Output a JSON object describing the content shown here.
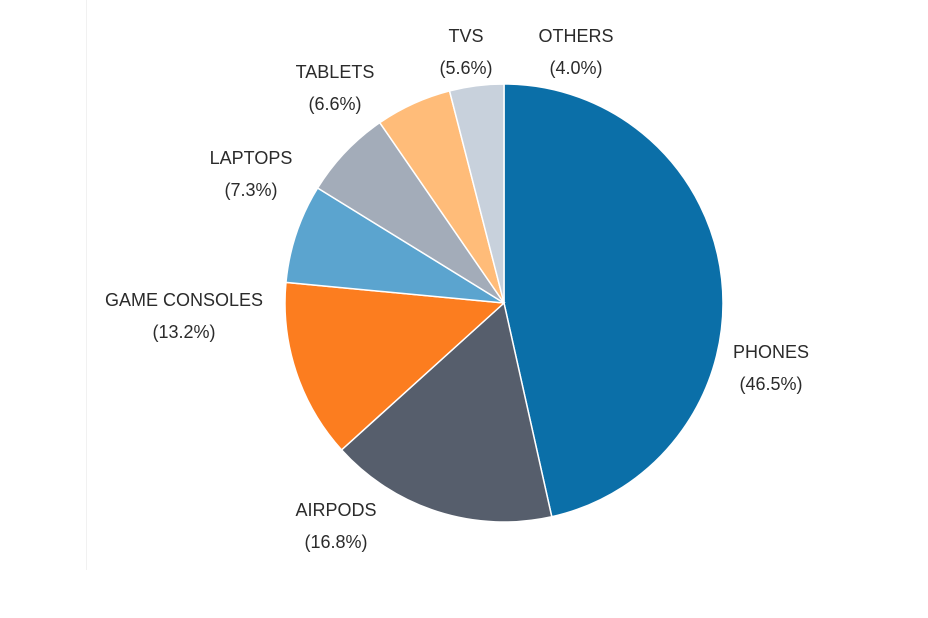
{
  "chart_data": {
    "type": "pie",
    "title": "",
    "slices": [
      {
        "label": "PHONES",
        "value": 46.5,
        "value_label": "(46.5%)",
        "color": "#0b6fa8"
      },
      {
        "label": "AIRPODS",
        "value": 16.8,
        "value_label": "(16.8%)",
        "color": "#565e6c"
      },
      {
        "label": "GAME CONSOLES",
        "value": 13.2,
        "value_label": "(13.2%)",
        "color": "#fc7d1f"
      },
      {
        "label": "LAPTOPS",
        "value": 7.3,
        "value_label": "(7.3%)",
        "color": "#5ba4cf"
      },
      {
        "label": "TABLETS",
        "value": 6.6,
        "value_label": "(6.6%)",
        "color": "#a3acb9"
      },
      {
        "label": "TVS",
        "value": 5.6,
        "value_label": "(5.6%)",
        "color": "#ffbc79"
      },
      {
        "label": "OTHERS",
        "value": 4.0,
        "value_label": "(4.0%)",
        "color": "#c8d1dc"
      }
    ],
    "legend": "none",
    "labels": "outside"
  }
}
